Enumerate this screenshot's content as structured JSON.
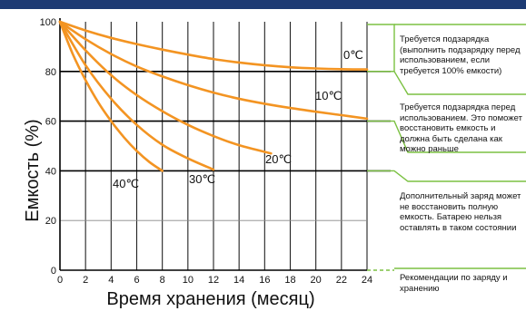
{
  "chart_data": {
    "type": "line",
    "xlabel": "Время хранения (месяц)",
    "ylabel": "Емкость (%)",
    "xlim": [
      0,
      24
    ],
    "ylim": [
      0,
      100
    ],
    "x_ticks": [
      0,
      2,
      4,
      6,
      8,
      10,
      12,
      14,
      16,
      18,
      20,
      22,
      24
    ],
    "y_ticks": [
      0,
      20,
      40,
      60,
      80,
      100
    ],
    "grid": true,
    "series": [
      {
        "name": "0℃",
        "x": [
          0,
          2,
          4,
          6,
          8,
          10,
          12,
          14,
          16,
          18,
          20,
          22,
          24
        ],
        "y": [
          100,
          96.5,
          93.5,
          91,
          88.8,
          86.8,
          85,
          83.6,
          82.5,
          81.7,
          81.2,
          80.9,
          80.8
        ]
      },
      {
        "name": "10℃",
        "x": [
          0,
          2,
          4,
          6,
          8,
          10,
          12,
          14,
          16,
          18,
          20,
          22,
          24
        ],
        "y": [
          100,
          93,
          87,
          82,
          78,
          74.5,
          71.5,
          69,
          67,
          65.3,
          63.8,
          62.4,
          61
        ]
      },
      {
        "name": "20℃",
        "x": [
          0,
          2,
          4,
          6,
          8,
          10,
          12,
          14,
          16.5
        ],
        "y": [
          100,
          88.5,
          78.5,
          70.5,
          64,
          58.5,
          54,
          50.3,
          47
        ]
      },
      {
        "name": "30℃",
        "x": [
          0,
          2,
          4,
          6,
          8,
          10,
          12
        ],
        "y": [
          100,
          82.5,
          69,
          58.5,
          50.5,
          45,
          40.5
        ]
      },
      {
        "name": "40℃",
        "x": [
          0,
          1,
          2,
          3,
          4,
          5,
          6,
          7,
          8
        ],
        "y": [
          100,
          87,
          76.5,
          67.5,
          60,
          53.5,
          48,
          43.5,
          40
        ]
      }
    ],
    "line_color": "#f39422",
    "thresholds": [
      80,
      60,
      40
    ]
  },
  "annotations": [
    {
      "text": "Требуется подзарядка (выполнить подзарядку перед использованием, если требуется 100% емкости)"
    },
    {
      "text": "Требуется подзарядка перед использованием. Это поможет восстановить емкость и должна быть сделана как можно раньше"
    },
    {
      "text": "Дополнительный заряд может не восстановить полную емкость. Батарею нельзя оставлять в таком состоянии"
    },
    {
      "text": "Рекомендации по заряду и хранению"
    }
  ],
  "colors": {
    "accent": "#7bc142",
    "header": "#1c3a73",
    "curve": "#f39422",
    "threshold": "#000000"
  }
}
